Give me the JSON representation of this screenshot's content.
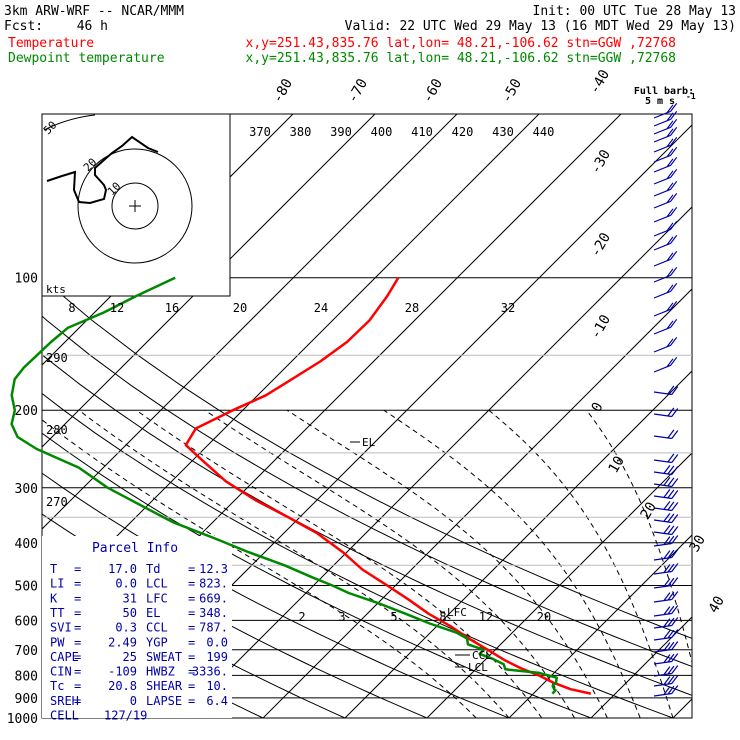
{
  "header": {
    "title": "3km ARW-WRF -- NCAR/MMM",
    "init": "Init: 00 UTC Tue 28 May 13",
    "fcst_label": "Fcst:",
    "fcst_value": "46 h",
    "valid": "Valid: 22 UTC Wed 29 May 13 (16 MDT Wed 29 May 13)",
    "fields": [
      {
        "name": "Temperature",
        "info": "x,y=251.43,835.76   lat,lon= 48.21,-106.62  stn=GGW ,72768"
      },
      {
        "name": "Dewpoint temperature",
        "info": "x,y=251.43,835.76   lat,lon= 48.21,-106.62  stn=GGW ,72768"
      }
    ]
  },
  "barb_legend": {
    "line1": "Full barb:",
    "line2": "5 m s",
    "exp": "-1"
  },
  "parcel_info": {
    "title": "Parcel Info",
    "rows": [
      {
        "l": "T",
        "lv": "17.0",
        "r": "Td",
        "rv": "12.3"
      },
      {
        "l": "LI",
        "lv": "0.0",
        "r": "LCL",
        "rv": "823."
      },
      {
        "l": "K",
        "lv": "31",
        "r": "LFC",
        "rv": "669."
      },
      {
        "l": "TT",
        "lv": "50",
        "r": "EL",
        "rv": "348."
      },
      {
        "l": "SVI",
        "lv": "0.3",
        "r": "CCL",
        "rv": "787."
      },
      {
        "l": "PW",
        "lv": "2.49",
        "r": "YGP",
        "rv": "0.0"
      },
      {
        "l": "CAPE",
        "lv": "25",
        "r": "SWEAT",
        "rv": "199"
      },
      {
        "l": "CIN",
        "lv": "-109",
        "r": "HWBZ",
        "rv": "3336."
      },
      {
        "l": "Tc",
        "lv": "20.8",
        "r": "SHEAR",
        "rv": "10."
      },
      {
        "l": "SREH",
        "lv": "0",
        "r": "LAPSE",
        "rv": "6.4"
      },
      {
        "l": "CELL",
        "lv": "127/19",
        "r": "",
        "rv": ""
      }
    ]
  },
  "hodograph": {
    "unit_label": "kts",
    "ring_labels": [
      "50",
      "20",
      "10"
    ]
  },
  "chart_data": {
    "type": "line",
    "title": "",
    "colors": {
      "temperature": "#ff0000",
      "dewpoint": "#008800",
      "wind": "#0000aa"
    },
    "pressure_ticks": [
      100,
      200,
      300,
      400,
      500,
      600,
      700,
      800,
      900,
      1000
    ],
    "temperature_ticks_right": [
      "-40",
      "-30",
      "-20",
      "-10",
      "0",
      "10",
      "20",
      "30",
      "40"
    ],
    "temperature_ticks_top": [
      "-80",
      "-70",
      "-60",
      "-50",
      "-40"
    ],
    "theta_e_labels": [
      "370",
      "380",
      "390",
      "400",
      "410",
      "420",
      "430",
      "440"
    ],
    "theta_labels": [
      "290",
      "280",
      "270"
    ],
    "mixing_ratio_labels_upper": [
      "8",
      "12",
      "16",
      "20",
      "24",
      "28",
      "32"
    ],
    "mixing_ratio_labels_lower": [
      "2",
      "3",
      "5",
      "8",
      "12",
      "20"
    ],
    "level_markers": [
      "EL",
      "LFC",
      "CCL",
      "LCL"
    ],
    "series": [
      {
        "name": "Temperature",
        "pressure": [
          880,
          860,
          830,
          800,
          770,
          740,
          700,
          660,
          620,
          580,
          540,
          500,
          460,
          420,
          380,
          350,
          320,
          290,
          260,
          240,
          220,
          200,
          185,
          170,
          155,
          140,
          125,
          110,
          100
        ],
        "temperature": [
          17,
          14,
          11,
          8.4,
          5.3,
          2.5,
          -0.9,
          -4.6,
          -8.2,
          -12.5,
          -16.5,
          -21,
          -26,
          -30.5,
          -36,
          -41.4,
          -47.5,
          -53.4,
          -58.8,
          -62.7,
          -63.5,
          -61.2,
          -59,
          -57.8,
          -56.5,
          -55.6,
          -55.5,
          -56.3,
          -57.2
        ]
      },
      {
        "name": "Dewpoint temperature",
        "pressure": [
          880,
          865,
          860,
          845,
          830,
          810,
          790,
          775,
          755,
          735,
          715,
          700,
          680,
          660,
          640,
          610,
          580,
          550,
          520,
          500,
          480,
          450,
          420,
          390,
          360,
          330,
          300,
          270,
          245,
          230,
          215,
          200,
          185,
          170,
          160,
          150,
          140,
          130,
          120,
          110,
          100
        ],
        "temperature": [
          12.3,
          12.3,
          12,
          11.4,
          11.4,
          10.9,
          8.2,
          3.6,
          2.8,
          0.9,
          -1.4,
          -1.4,
          -4,
          -4.8,
          -6.8,
          -11.2,
          -15.3,
          -19.7,
          -24.8,
          -27.7,
          -31,
          -36,
          -42,
          -48,
          -54.7,
          -60.6,
          -67,
          -73,
          -80.4,
          -84.2,
          -86.5,
          -87.8,
          -90,
          -91.6,
          -91.9,
          -91.8,
          -91.7,
          -91.4,
          -88.9,
          -86.9,
          -84.4
        ]
      }
    ]
  }
}
